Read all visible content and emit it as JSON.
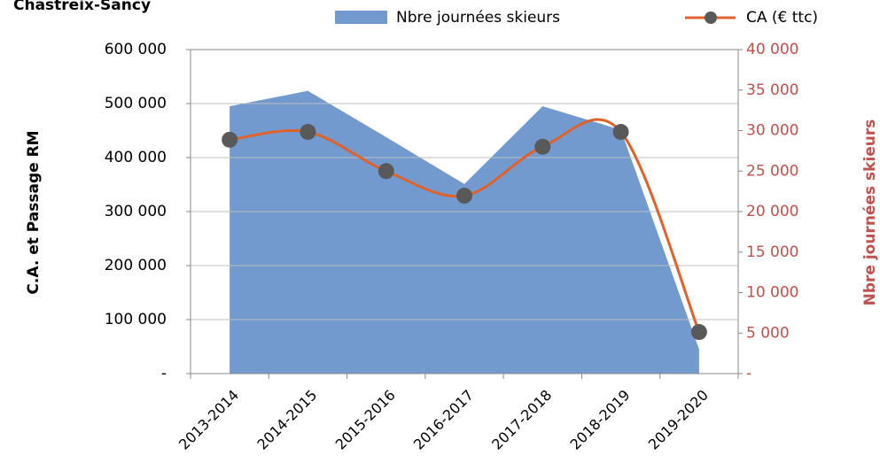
{
  "chart_data": {
    "type": "area_line",
    "title": "Chastreix-Sancy",
    "y_label": "C.A. et Passage RM",
    "y2_label": "Nbre journées skieurs",
    "categories": [
      "2013-2014",
      "2014-2015",
      "2015-2016",
      "2016-2017",
      "2017-2018",
      "2018-2019",
      "2019-2020"
    ],
    "series": [
      {
        "name": "Nbre journées skieurs",
        "type": "area",
        "axis": "y2",
        "color": "#729acf",
        "values": [
          33000,
          34900,
          29200,
          23400,
          33000,
          30100,
          3000
        ]
      },
      {
        "name": "CA (€ ttc)",
        "type": "line",
        "axis": "y",
        "color": "#e0622a",
        "marker_color": "#595959",
        "values": [
          433000,
          447500,
          375000,
          329500,
          420000,
          447500,
          77000
        ]
      }
    ],
    "ylim": [
      0,
      600000
    ],
    "yticks": [
      {
        "value": 0,
        "label": "-"
      },
      {
        "value": 100000,
        "label": "100 000"
      },
      {
        "value": 200000,
        "label": "200 000"
      },
      {
        "value": 300000,
        "label": "300 000"
      },
      {
        "value": 400000,
        "label": "400 000"
      },
      {
        "value": 500000,
        "label": "500 000"
      },
      {
        "value": 600000,
        "label": "600 000"
      }
    ],
    "y2lim": [
      0,
      40000
    ],
    "y2ticks": [
      {
        "value": 0,
        "label": "-"
      },
      {
        "value": 5000,
        "label": "5 000"
      },
      {
        "value": 10000,
        "label": "10 000"
      },
      {
        "value": 15000,
        "label": "15 000"
      },
      {
        "value": 20000,
        "label": "20 000"
      },
      {
        "value": 25000,
        "label": "25 000"
      },
      {
        "value": 30000,
        "label": "30 000"
      },
      {
        "value": 35000,
        "label": "35 000"
      },
      {
        "value": 40000,
        "label": "40 000"
      }
    ],
    "grid": true
  }
}
